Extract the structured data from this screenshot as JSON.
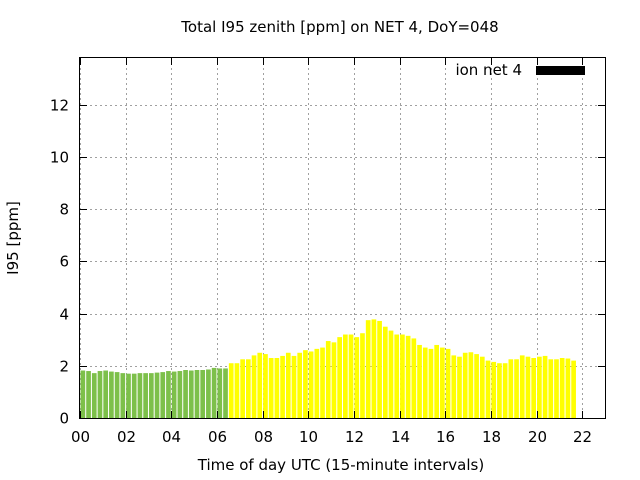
{
  "chart_data": {
    "type": "bar",
    "title": "Total I95 zenith [ppm] on NET 4, DoY=048",
    "xlabel": "Time of day UTC (15-minute intervals)",
    "ylabel": "I95 [ppm]",
    "xlim": [
      0,
      23
    ],
    "ylim": [
      0,
      13.8
    ],
    "xticks": [
      "00",
      "02",
      "04",
      "06",
      "08",
      "10",
      "12",
      "14",
      "16",
      "18",
      "20",
      "22"
    ],
    "yticks": [
      "0",
      "2",
      "4",
      "6",
      "8",
      "10",
      "12"
    ],
    "grid": true,
    "legend": {
      "label": "ion net 4",
      "color": "#000000",
      "position": "top-right"
    },
    "colors": {
      "early": "#7dc04a",
      "late": "#ffff00"
    },
    "series": [
      {
        "interval_hours": 0.25,
        "start_hour": 0,
        "color_switch_index": 26,
        "values": [
          1.82,
          1.8,
          1.72,
          1.8,
          1.82,
          1.78,
          1.76,
          1.72,
          1.7,
          1.7,
          1.72,
          1.72,
          1.72,
          1.74,
          1.76,
          1.8,
          1.78,
          1.8,
          1.84,
          1.82,
          1.84,
          1.84,
          1.86,
          1.92,
          1.9,
          1.9,
          2.1,
          2.1,
          2.25,
          2.25,
          2.4,
          2.5,
          2.45,
          2.3,
          2.3,
          2.38,
          2.5,
          2.38,
          2.5,
          2.6,
          2.55,
          2.65,
          2.7,
          2.95,
          2.9,
          3.1,
          3.2,
          3.2,
          3.1,
          3.25,
          3.75,
          3.78,
          3.72,
          3.5,
          3.35,
          3.2,
          3.2,
          3.15,
          3.05,
          2.8,
          2.7,
          2.65,
          2.8,
          2.7,
          2.65,
          2.4,
          2.35,
          2.5,
          2.52,
          2.45,
          2.35,
          2.2,
          2.15,
          2.1,
          2.1,
          2.25,
          2.25,
          2.4,
          2.35,
          2.3,
          2.35,
          2.38,
          2.25,
          2.25,
          2.3,
          2.28,
          2.2
        ]
      }
    ]
  }
}
